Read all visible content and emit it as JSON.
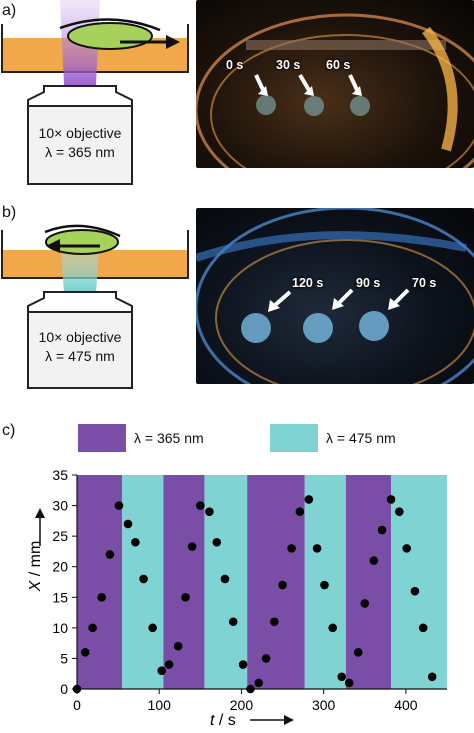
{
  "panels": {
    "a": {
      "label": "a)",
      "objective": "10× objective",
      "wavelength": "λ = 365 nm",
      "time_labels": [
        "0 s",
        "30 s",
        "60 s"
      ]
    },
    "b": {
      "label": "b)",
      "objective": "10× objective",
      "wavelength": "λ = 475 nm",
      "time_labels": [
        "120 s",
        "90 s",
        "70 s"
      ]
    },
    "c": {
      "label": "c)"
    }
  },
  "colors": {
    "uv": "#7a4ea6",
    "blue": "#7fd3d3",
    "orange": "#f0a84a",
    "droplet": "#a6d15a"
  },
  "chart_data": {
    "type": "scatter",
    "xlabel_var": "t",
    "xlabel_unit": " / s",
    "ylabel_var": "X",
    "ylabel_unit": " / mm",
    "xlim": [
      0,
      450
    ],
    "ylim": [
      0,
      35
    ],
    "xticks": [
      0,
      100,
      200,
      300,
      400
    ],
    "yticks": [
      0,
      5,
      10,
      15,
      20,
      25,
      30,
      35
    ],
    "legend": [
      {
        "label": "λ = 365 nm",
        "color": "#7a4ea6"
      },
      {
        "label": "λ = 475 nm",
        "color": "#7fd3d3"
      }
    ],
    "bands": [
      {
        "start": 0,
        "end": 55,
        "type": "uv"
      },
      {
        "start": 55,
        "end": 105,
        "type": "blue"
      },
      {
        "start": 105,
        "end": 155,
        "type": "uv"
      },
      {
        "start": 155,
        "end": 207,
        "type": "blue"
      },
      {
        "start": 207,
        "end": 277,
        "type": "uv"
      },
      {
        "start": 277,
        "end": 327,
        "type": "blue"
      },
      {
        "start": 327,
        "end": 382,
        "type": "uv"
      },
      {
        "start": 382,
        "end": 450,
        "type": "blue"
      }
    ],
    "points": [
      [
        0,
        0
      ],
      [
        10,
        6
      ],
      [
        19,
        10
      ],
      [
        30,
        15
      ],
      [
        40,
        22
      ],
      [
        51,
        30
      ],
      [
        62,
        27
      ],
      [
        71,
        24
      ],
      [
        81,
        18
      ],
      [
        92,
        10
      ],
      [
        103,
        3
      ],
      [
        112,
        4
      ],
      [
        123,
        7
      ],
      [
        132,
        15
      ],
      [
        140,
        23.3
      ],
      [
        150,
        30
      ],
      [
        161,
        29
      ],
      [
        170,
        24
      ],
      [
        180,
        18
      ],
      [
        190,
        11
      ],
      [
        202,
        4
      ],
      [
        211,
        0
      ],
      [
        221,
        1
      ],
      [
        230,
        5
      ],
      [
        240,
        11
      ],
      [
        250,
        17
      ],
      [
        261,
        23
      ],
      [
        271,
        29
      ],
      [
        282,
        31
      ],
      [
        292,
        23
      ],
      [
        301,
        17
      ],
      [
        311,
        10
      ],
      [
        322,
        2
      ],
      [
        331,
        1
      ],
      [
        342,
        6
      ],
      [
        350,
        14
      ],
      [
        361,
        21
      ],
      [
        371,
        26
      ],
      [
        382,
        31
      ],
      [
        392,
        29
      ],
      [
        401,
        23
      ],
      [
        411,
        16
      ],
      [
        421,
        10
      ],
      [
        432,
        2
      ]
    ]
  }
}
